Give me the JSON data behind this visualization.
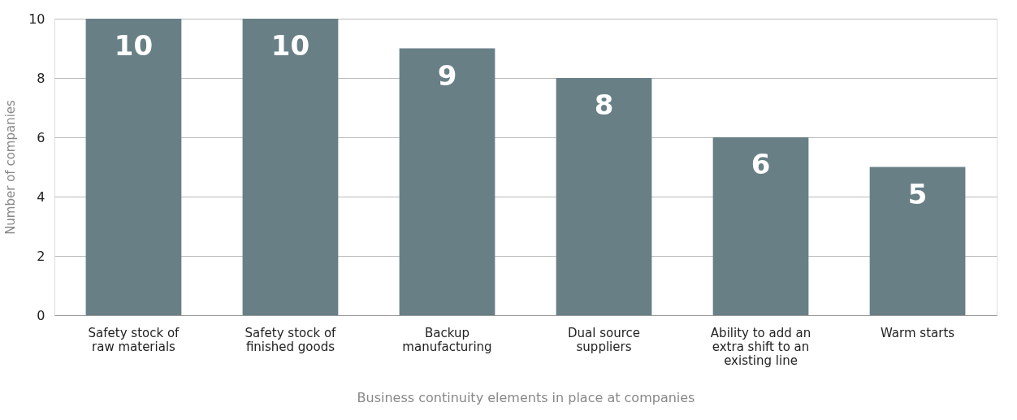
{
  "chart_data": {
    "type": "bar",
    "categories": [
      "Safety stock of raw materials",
      "Safety stock of finished goods",
      "Backup manufacturing",
      "Dual source suppliers",
      "Ability to add an extra shift to an existing line",
      "Warm starts"
    ],
    "values": [
      10,
      10,
      9,
      8,
      6,
      5
    ],
    "color": "#687f86",
    "xlabel": "Business continuity elements in place at companies",
    "ylabel": "Number of companies",
    "ylim": [
      0,
      10
    ],
    "yticks": [
      0,
      2,
      4,
      6,
      8,
      10
    ],
    "grid": "y",
    "data_labels": true
  }
}
